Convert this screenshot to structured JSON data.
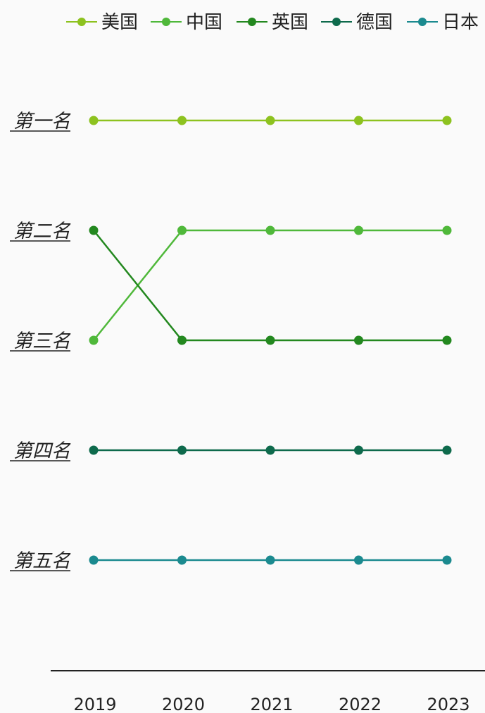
{
  "chart_data": {
    "type": "line",
    "title": "",
    "xlabel": "",
    "ylabel": "",
    "x": [
      "2019",
      "2020",
      "2021",
      "2022",
      "2023"
    ],
    "y_categories": [
      "第一名",
      "第二名",
      "第三名",
      "第四名",
      "第五名"
    ],
    "y_inverted": true,
    "grid": false,
    "legend_position": "top",
    "series": [
      {
        "name": "美国",
        "color": "#8dc21f",
        "values": [
          1,
          1,
          1,
          1,
          1
        ]
      },
      {
        "name": "中国",
        "color": "#4fb83a",
        "values": [
          3,
          2,
          2,
          2,
          2
        ]
      },
      {
        "name": "英国",
        "color": "#23881f",
        "values": [
          2,
          3,
          3,
          3,
          3
        ]
      },
      {
        "name": "德国",
        "color": "#0e6a4c",
        "values": [
          4,
          4,
          4,
          4,
          4
        ]
      },
      {
        "name": "日本",
        "color": "#1b8a8f",
        "values": [
          5,
          5,
          5,
          5,
          5
        ]
      }
    ]
  }
}
